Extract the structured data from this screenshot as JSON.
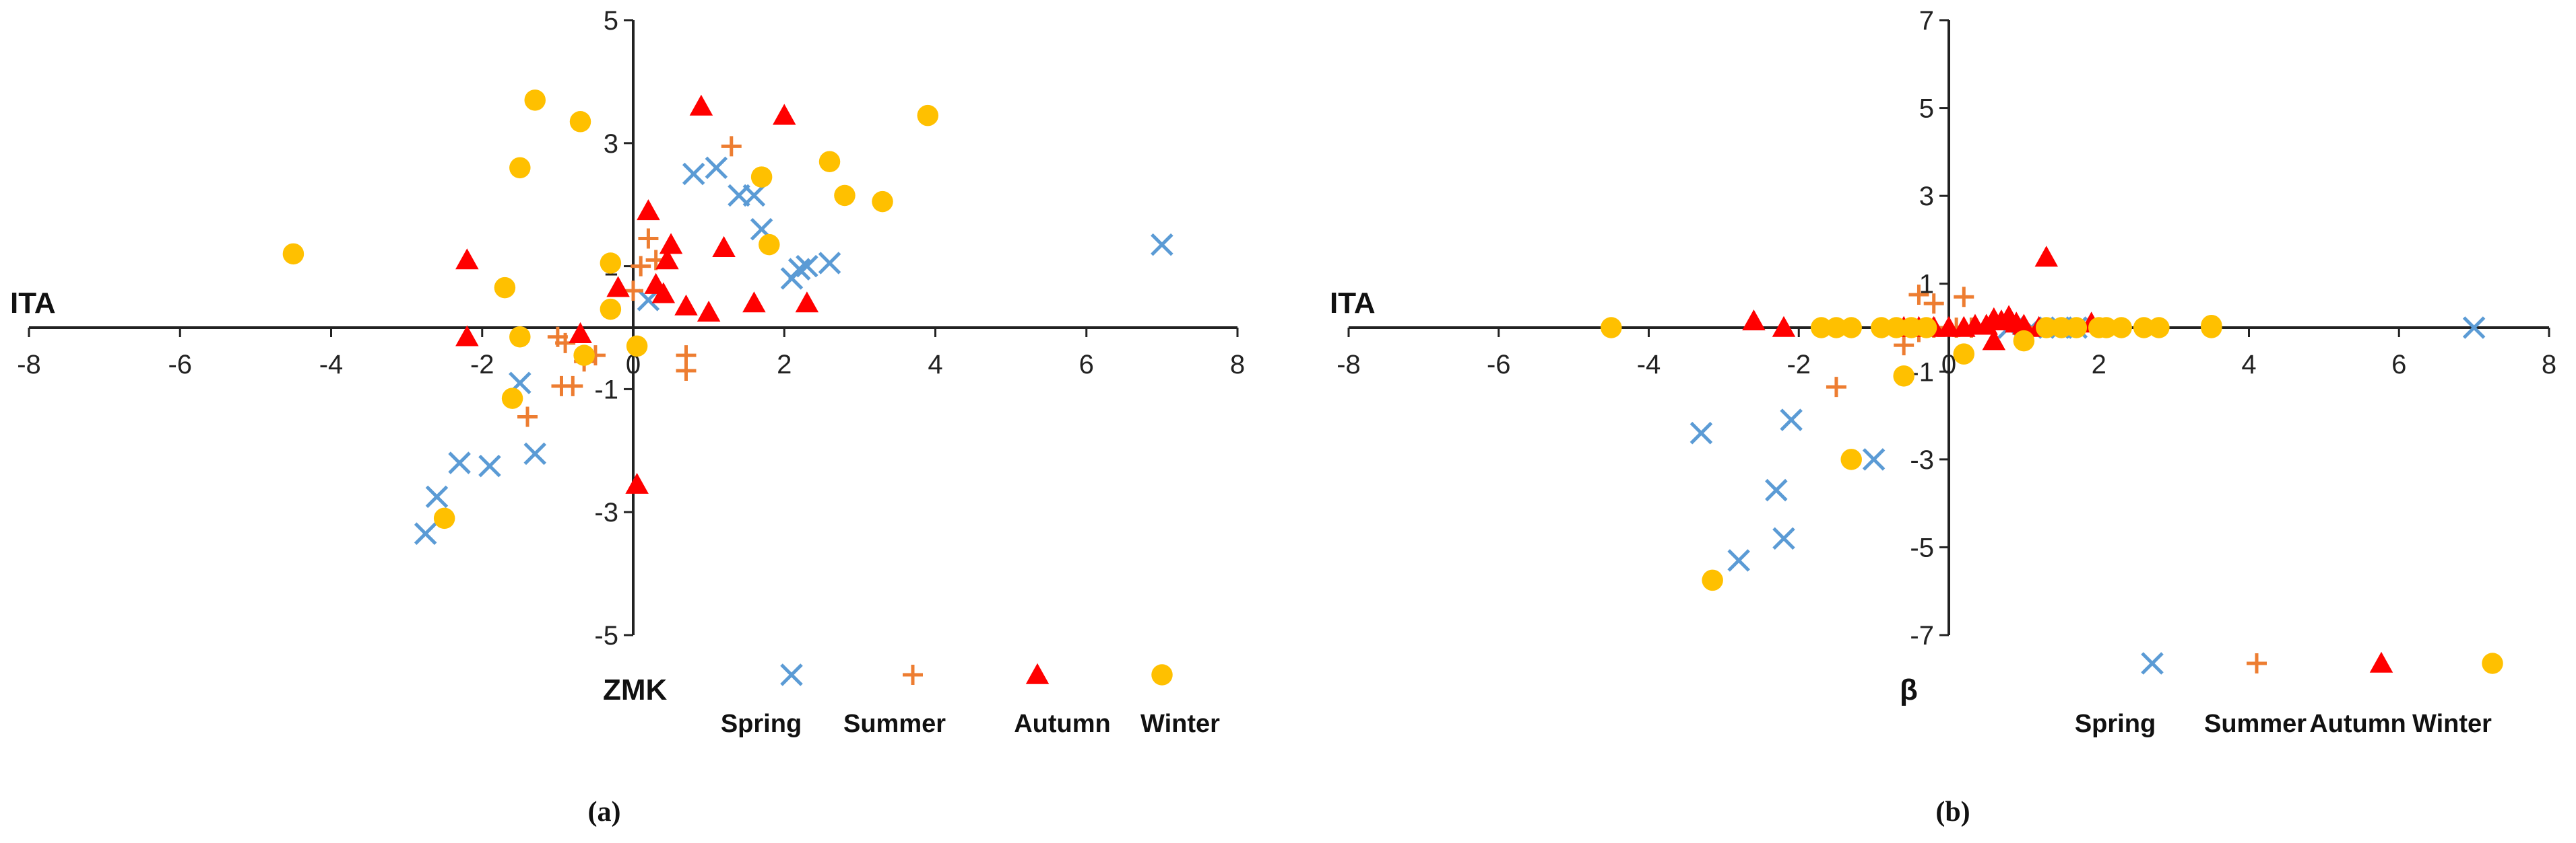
{
  "colors": {
    "Spring": "#5B9BD5",
    "Summer": "#ED7D31",
    "Autumn": "#FF0000",
    "Winter": "#FFC000"
  },
  "chart_data": [
    {
      "type": "scatter",
      "panel_label": "(a)",
      "title": "",
      "xlabel": "ZMK",
      "ylabel": "ITA",
      "xlim": [
        -8,
        8
      ],
      "ylim": [
        -5,
        5
      ],
      "xticks": [
        -8,
        -6,
        -4,
        -2,
        0,
        2,
        4,
        6,
        8
      ],
      "yticks": [
        -5,
        -3,
        -1,
        1,
        3,
        5
      ],
      "grid": false,
      "legend_position": "bottom",
      "series": [
        {
          "name": "Spring",
          "marker": "x",
          "points": [
            [
              7.0,
              1.35
            ],
            [
              0.8,
              2.5
            ],
            [
              1.1,
              2.6
            ],
            [
              1.4,
              2.15
            ],
            [
              1.6,
              2.15
            ],
            [
              1.7,
              1.6
            ],
            [
              2.1,
              0.8
            ],
            [
              2.2,
              0.95
            ],
            [
              2.3,
              1.0
            ],
            [
              2.6,
              1.05
            ],
            [
              0.2,
              0.45
            ],
            [
              -1.5,
              -0.9
            ],
            [
              -1.3,
              -2.05
            ],
            [
              -1.9,
              -2.25
            ],
            [
              -2.3,
              -2.2
            ],
            [
              -2.6,
              -2.75
            ],
            [
              -2.75,
              -3.35
            ]
          ]
        },
        {
          "name": "Summer",
          "marker": "+",
          "points": [
            [
              1.3,
              2.95
            ],
            [
              0.2,
              1.45
            ],
            [
              0.3,
              1.1
            ],
            [
              0.1,
              1.0
            ],
            [
              0.0,
              0.6
            ],
            [
              -1.0,
              -0.15
            ],
            [
              -0.9,
              -0.25
            ],
            [
              -0.5,
              -0.45
            ],
            [
              -0.65,
              -0.55
            ],
            [
              -0.8,
              -0.95
            ],
            [
              -0.95,
              -0.95
            ],
            [
              -1.4,
              -1.45
            ],
            [
              0.7,
              -0.45
            ],
            [
              0.7,
              -0.7
            ]
          ]
        },
        {
          "name": "Autumn",
          "marker": "triangle",
          "points": [
            [
              0.9,
              3.6
            ],
            [
              2.0,
              3.45
            ],
            [
              0.2,
              1.9
            ],
            [
              0.5,
              1.35
            ],
            [
              0.45,
              1.1
            ],
            [
              1.2,
              1.3
            ],
            [
              -2.2,
              1.1
            ],
            [
              0.3,
              0.7
            ],
            [
              -0.2,
              0.65
            ],
            [
              0.4,
              0.55
            ],
            [
              0.7,
              0.35
            ],
            [
              1.0,
              0.25
            ],
            [
              1.6,
              0.4
            ],
            [
              2.3,
              0.4
            ],
            [
              -2.2,
              -0.15
            ],
            [
              -0.7,
              -0.1
            ],
            [
              0.05,
              -2.55
            ]
          ]
        },
        {
          "name": "Winter",
          "marker": "circle",
          "points": [
            [
              -4.5,
              1.2
            ],
            [
              -1.3,
              3.7
            ],
            [
              -0.7,
              3.35
            ],
            [
              -1.5,
              2.6
            ],
            [
              3.9,
              3.45
            ],
            [
              2.6,
              2.7
            ],
            [
              1.7,
              2.45
            ],
            [
              2.8,
              2.15
            ],
            [
              3.3,
              2.05
            ],
            [
              1.8,
              1.35
            ],
            [
              -0.3,
              1.05
            ],
            [
              -1.7,
              0.65
            ],
            [
              -0.3,
              0.3
            ],
            [
              -1.5,
              -0.15
            ],
            [
              0.05,
              -0.3
            ],
            [
              -0.65,
              -0.45
            ],
            [
              -1.6,
              -1.15
            ],
            [
              -2.5,
              -3.1
            ]
          ]
        }
      ]
    },
    {
      "type": "scatter",
      "panel_label": "(b)",
      "title": "",
      "xlabel": "β",
      "ylabel": "ITA",
      "xlim": [
        -8,
        8
      ],
      "ylim": [
        -7,
        7
      ],
      "xticks": [
        -8,
        -6,
        -4,
        -2,
        0,
        2,
        4,
        6,
        8
      ],
      "yticks": [
        -7,
        -5,
        -3,
        -1,
        1,
        3,
        5,
        7
      ],
      "grid": false,
      "legend_position": "bottom",
      "series": [
        {
          "name": "Spring",
          "marker": "x",
          "points": [
            [
              7.0,
              0.0
            ],
            [
              -3.3,
              -2.4
            ],
            [
              -2.1,
              -2.1
            ],
            [
              -2.3,
              -3.7
            ],
            [
              -2.2,
              -4.8
            ],
            [
              -2.8,
              -5.3
            ],
            [
              -1.0,
              -3.0
            ],
            [
              0.8,
              0.0
            ],
            [
              1.1,
              0.0
            ],
            [
              1.5,
              0.0
            ],
            [
              1.7,
              0.0
            ]
          ]
        },
        {
          "name": "Summer",
          "marker": "+",
          "points": [
            [
              -0.4,
              0.75
            ],
            [
              0.2,
              0.7
            ],
            [
              -0.2,
              0.55
            ],
            [
              -0.6,
              -0.4
            ],
            [
              -0.4,
              -0.1
            ],
            [
              -1.5,
              -1.35
            ],
            [
              -0.2,
              0.0
            ],
            [
              0.1,
              0.0
            ],
            [
              0.3,
              0.0
            ],
            [
              1.0,
              0.0
            ]
          ]
        },
        {
          "name": "Autumn",
          "marker": "triangle",
          "points": [
            [
              1.3,
              1.6
            ],
            [
              -2.6,
              0.15
            ],
            [
              -2.2,
              0.0
            ],
            [
              -0.6,
              0.0
            ],
            [
              -0.4,
              0.0
            ],
            [
              -0.2,
              0.0
            ],
            [
              0.0,
              0.0
            ],
            [
              0.2,
              0.0
            ],
            [
              0.35,
              0.05
            ],
            [
              0.5,
              0.05
            ],
            [
              0.6,
              0.2
            ],
            [
              0.7,
              0.15
            ],
            [
              0.8,
              0.25
            ],
            [
              0.9,
              0.1
            ],
            [
              1.0,
              0.05
            ],
            [
              1.2,
              0.0
            ],
            [
              1.9,
              0.1
            ],
            [
              0.6,
              -0.3
            ]
          ]
        },
        {
          "name": "Winter",
          "marker": "circle",
          "points": [
            [
              -4.5,
              0.0
            ],
            [
              -1.7,
              0.0
            ],
            [
              -1.5,
              0.0
            ],
            [
              -1.3,
              0.0
            ],
            [
              -0.9,
              0.0
            ],
            [
              -0.7,
              0.0
            ],
            [
              -0.5,
              0.0
            ],
            [
              -0.3,
              0.0
            ],
            [
              1.3,
              0.0
            ],
            [
              1.5,
              0.0
            ],
            [
              1.7,
              0.0
            ],
            [
              2.0,
              0.0
            ],
            [
              2.1,
              0.0
            ],
            [
              2.3,
              0.0
            ],
            [
              2.6,
              0.0
            ],
            [
              2.8,
              0.0
            ],
            [
              3.5,
              0.0
            ],
            [
              3.5,
              0.05
            ],
            [
              1.0,
              -0.3
            ],
            [
              0.2,
              -0.6
            ],
            [
              -0.6,
              -1.1
            ],
            [
              -1.3,
              -3.0
            ],
            [
              -3.15,
              -5.75
            ]
          ]
        }
      ]
    }
  ]
}
